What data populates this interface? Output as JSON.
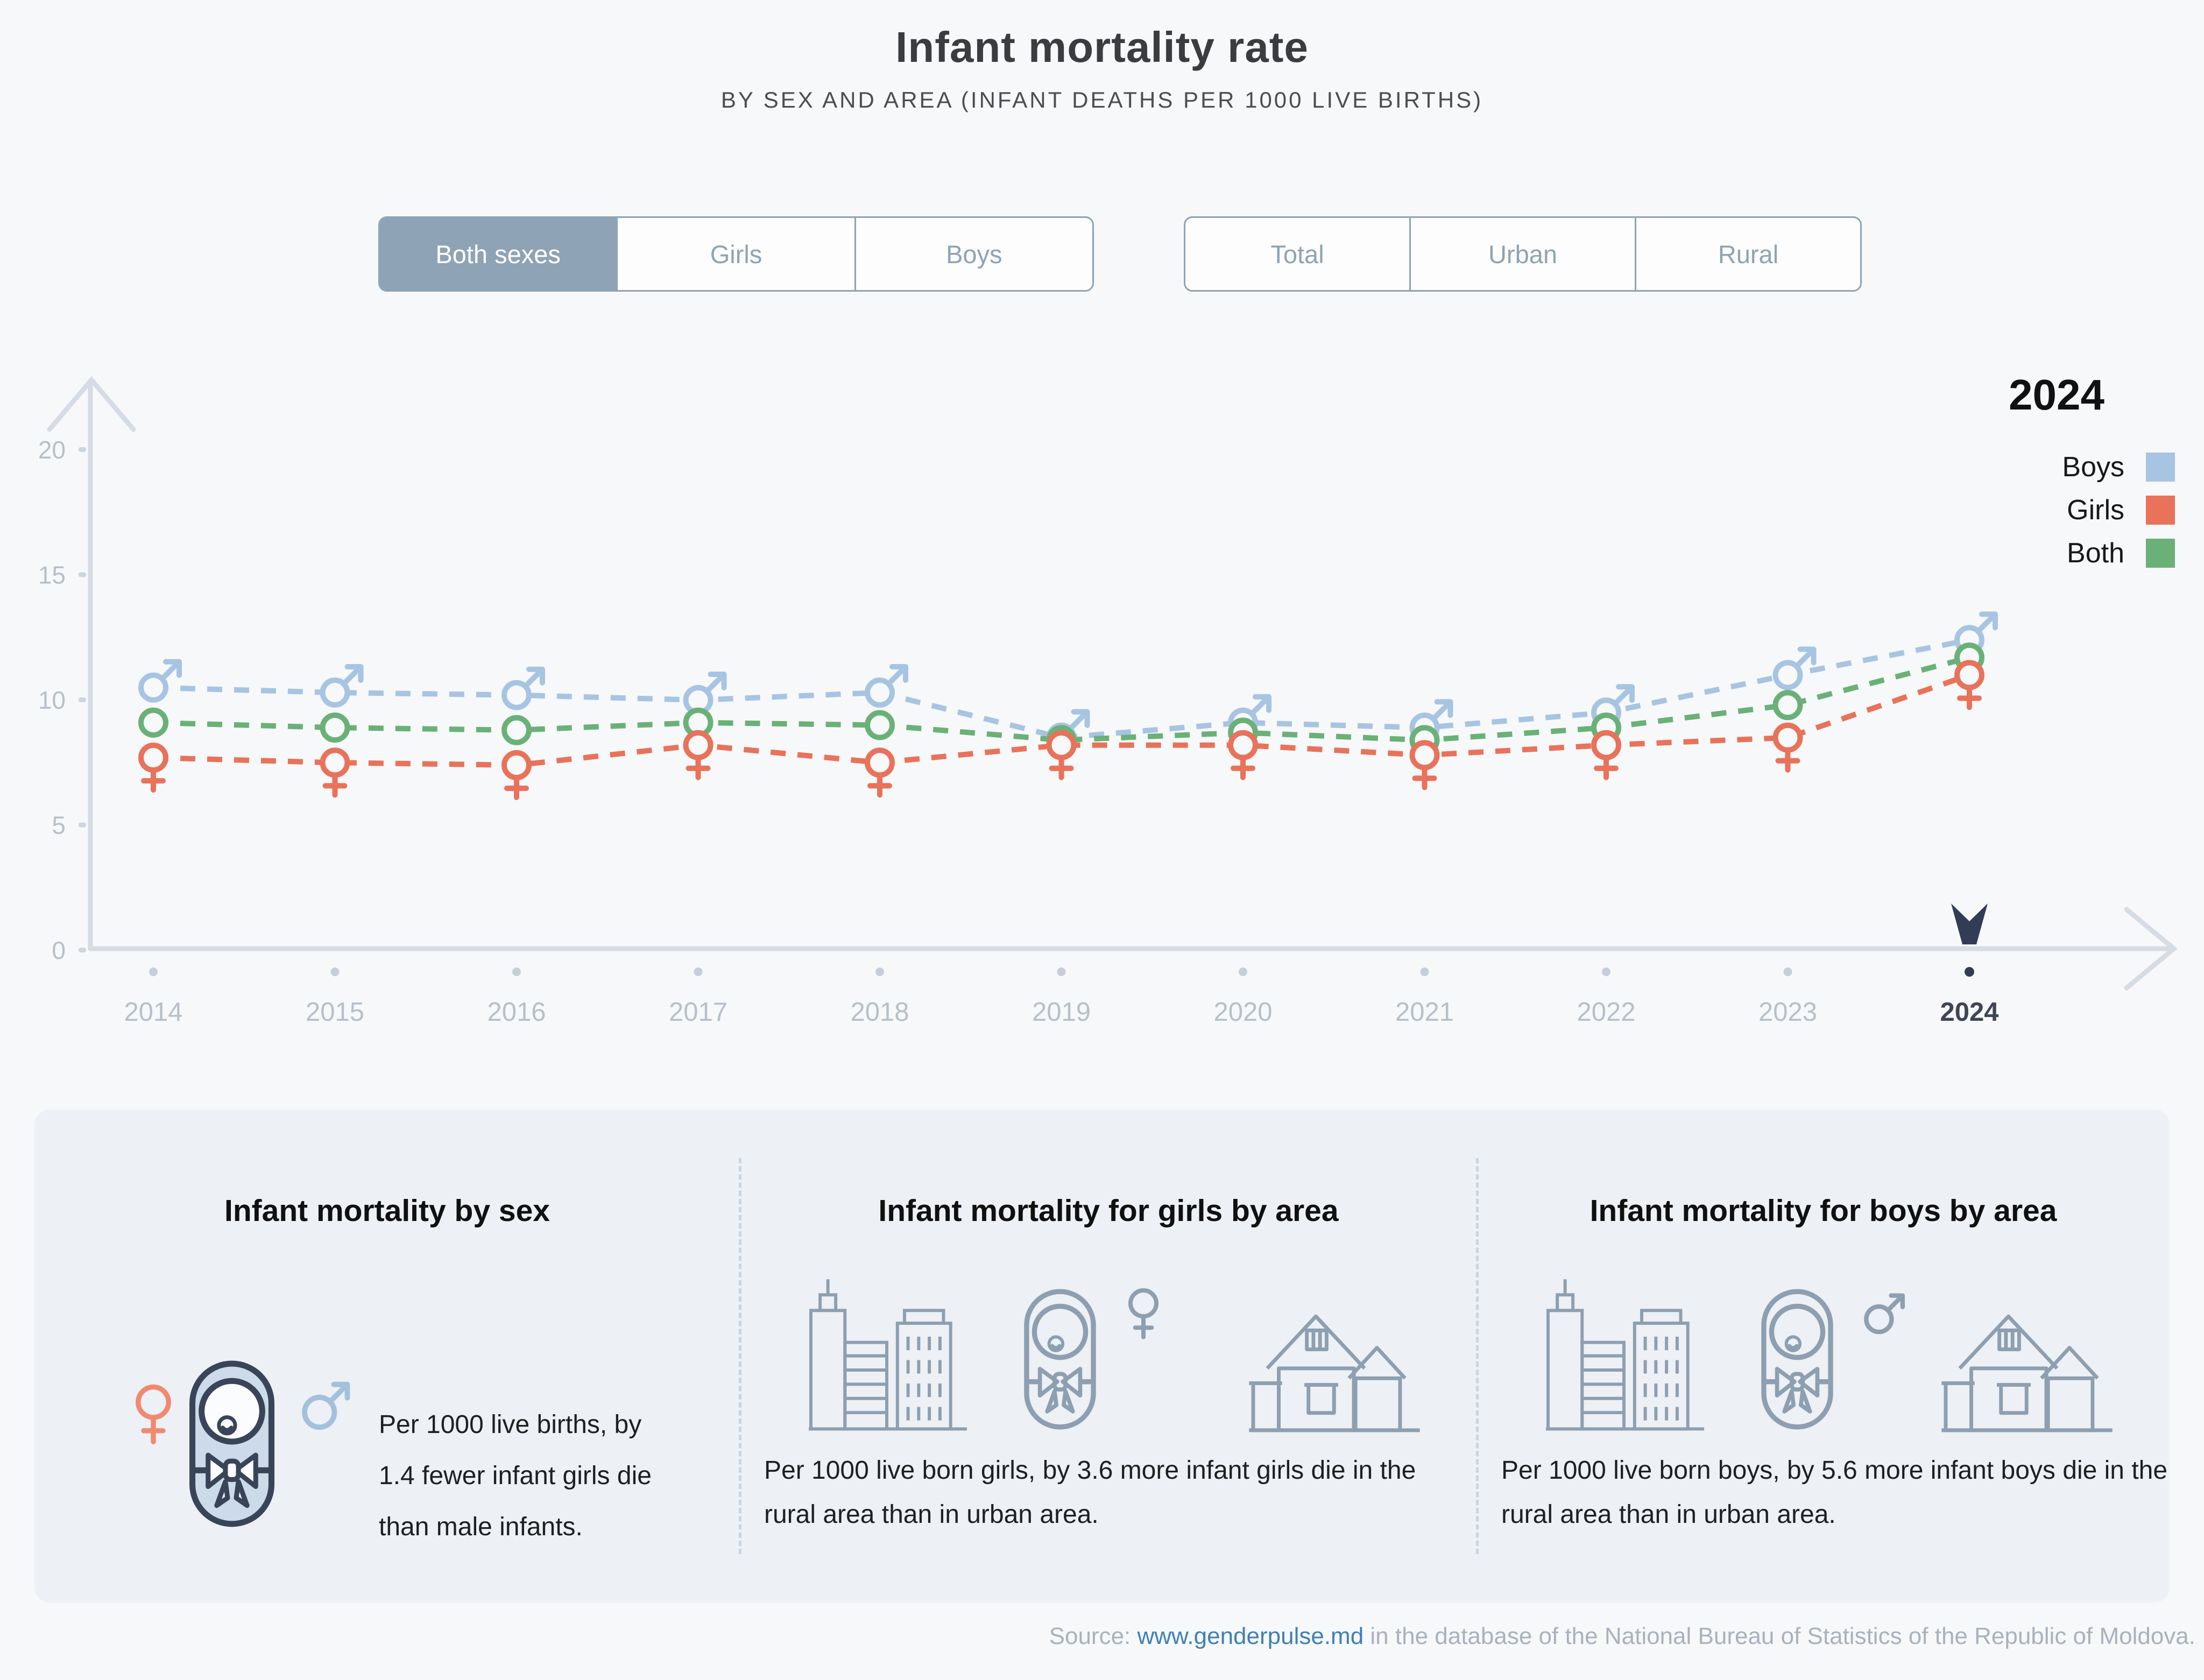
{
  "header": {
    "title": "Infant mortality rate",
    "subtitle": "BY SEX AND AREA (INFANT DEATHS PER 1000 LIVE BIRTHS)"
  },
  "controls": {
    "sex": {
      "options": [
        {
          "label": "Both sexes",
          "active": true
        },
        {
          "label": "Girls",
          "active": false
        },
        {
          "label": "Boys",
          "active": false
        }
      ]
    },
    "area": {
      "options": [
        {
          "label": "Total",
          "active": false
        },
        {
          "label": "Urban",
          "active": false
        },
        {
          "label": "Rural",
          "active": false
        }
      ]
    }
  },
  "chart_data": {
    "type": "line",
    "title": "Infant mortality rate by sex, 2014-2024",
    "x": [
      2014,
      2015,
      2016,
      2017,
      2018,
      2019,
      2020,
      2021,
      2022,
      2023,
      2024
    ],
    "series": [
      {
        "name": "Boys",
        "color": "#a7c4e2",
        "marker": "male",
        "values": [
          10.5,
          10.3,
          10.2,
          10.0,
          10.3,
          8.5,
          9.1,
          8.9,
          9.5,
          11.0,
          12.4
        ]
      },
      {
        "name": "Both",
        "color": "#6ab177",
        "marker": "circle",
        "values": [
          9.1,
          8.9,
          8.8,
          9.1,
          9.0,
          8.4,
          8.7,
          8.4,
          8.9,
          9.8,
          11.7
        ]
      },
      {
        "name": "Girls",
        "color": "#e8725a",
        "marker": "female",
        "values": [
          7.7,
          7.5,
          7.4,
          8.2,
          7.5,
          8.2,
          8.2,
          7.8,
          8.2,
          8.5,
          11.0
        ]
      }
    ],
    "ylabel": "",
    "xlabel": "",
    "ylim": [
      0,
      22
    ],
    "yticks": [
      0,
      5,
      10,
      15,
      20
    ],
    "grid": false,
    "line_style": "dashed",
    "highlight_year": 2024,
    "legend_position": "top-right"
  },
  "legend": {
    "title": "2024",
    "items": [
      {
        "label": "Boys",
        "color": "#a7c4e2"
      },
      {
        "label": "Girls",
        "color": "#e8725a"
      },
      {
        "label": "Both",
        "color": "#6ab177"
      }
    ]
  },
  "cards": [
    {
      "title": "Infant mortality by sex",
      "text": "Per 1000 live births, by 1.4 fewer infant girls die than male infants.",
      "icons": [
        "female-icon",
        "baby-icon",
        "male-icon"
      ]
    },
    {
      "title": "Infant mortality for girls by area",
      "text": "Per 1000 live born girls, by 3.6 more infant girls die in the rural area than in urban area.",
      "icons": [
        "city-buildings-icon",
        "baby-icon",
        "female-icon",
        "house-icon"
      ]
    },
    {
      "title": "Infant mortality for boys by area",
      "text": "Per 1000 live born boys, by 5.6 more infant boys die in the rural area than in urban area.",
      "icons": [
        "city-buildings-icon",
        "baby-icon",
        "male-icon",
        "house-icon"
      ]
    }
  ],
  "footer": {
    "prefix": "Source: ",
    "link": "www.genderpulse.md",
    "suffix": " in the database of the National Bureau of Statistics of the Republic of Moldova."
  },
  "colors": {
    "background": "#f7f8fa",
    "card_background": "#edf0f4",
    "boys": "#a7c4e2",
    "girls": "#e8725a",
    "both": "#6ab177",
    "button_accent": "#8ea3b5",
    "axis": "#d5dce4",
    "axis_label": "#b6c0ca",
    "highlight": "#333c56",
    "link": "#4080b4"
  }
}
